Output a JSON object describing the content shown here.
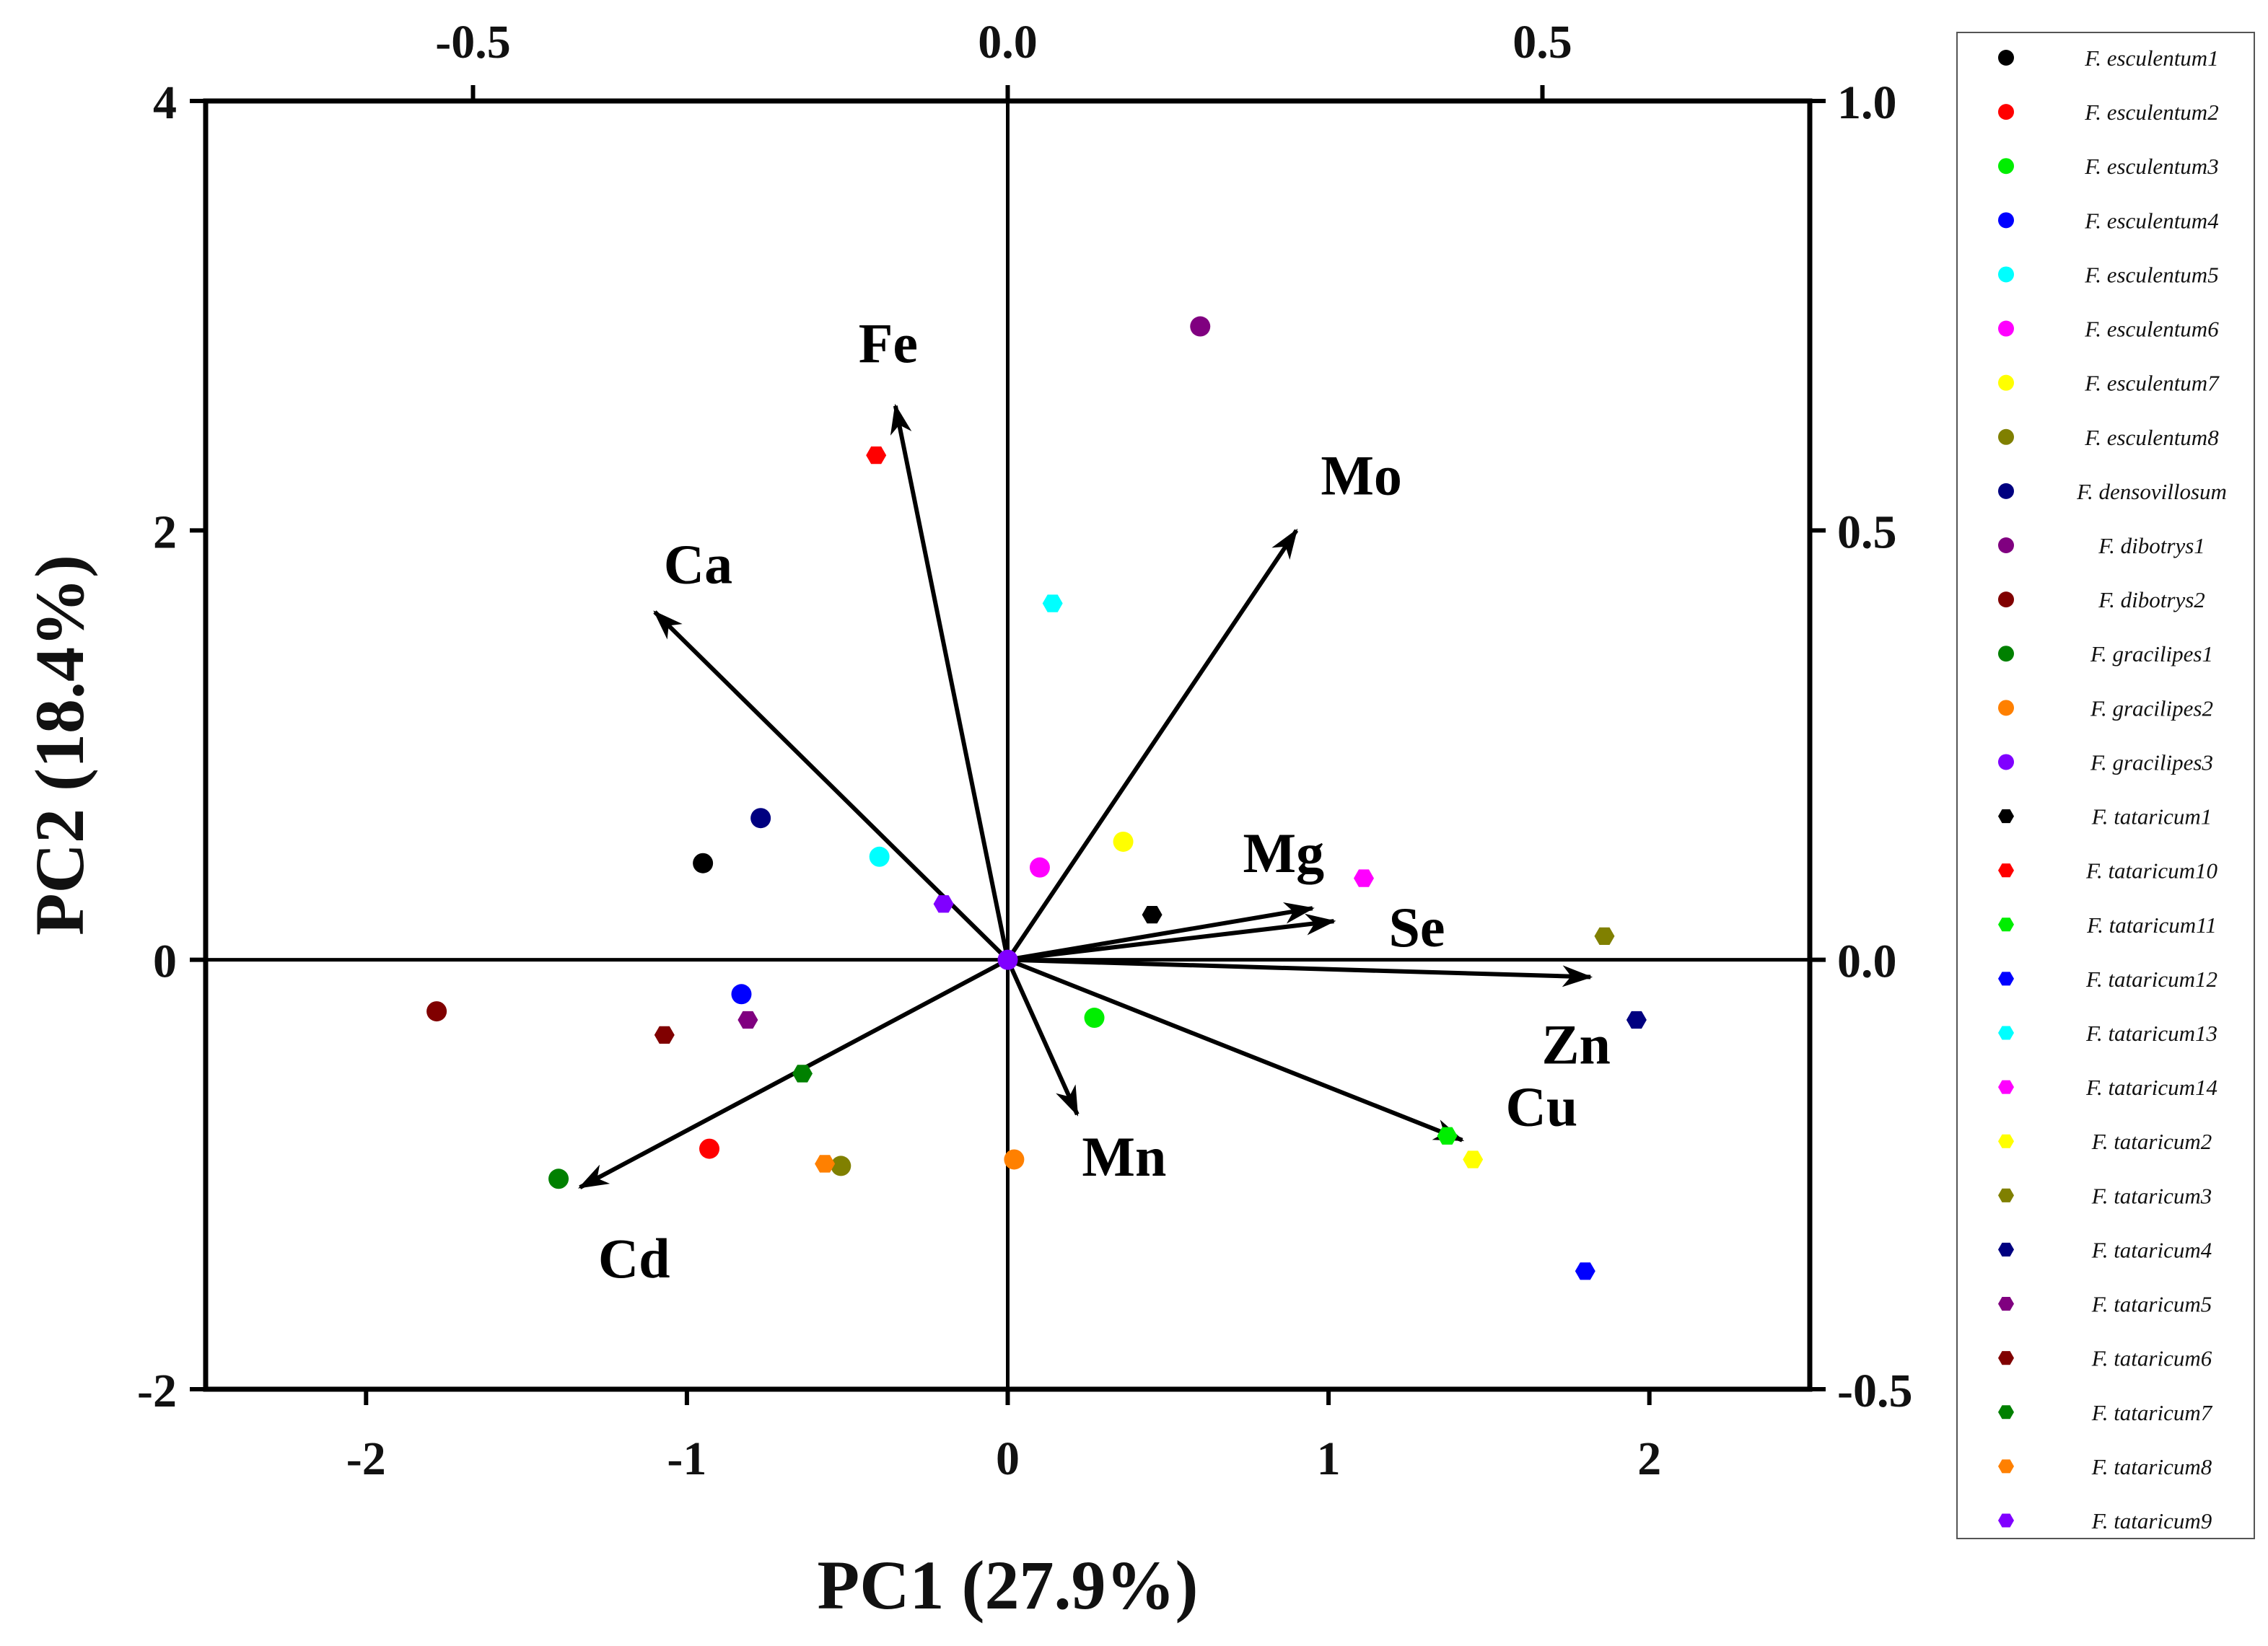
{
  "chart_data": {
    "type": "scatter",
    "title": "",
    "xlabel": "PC1 (27.9%)",
    "ylabel": "PC2 (18.4%)",
    "xlim": [
      -2.5,
      2.5
    ],
    "ylim": [
      -2,
      4
    ],
    "x_ticks": [
      -2,
      -1,
      0,
      1,
      2
    ],
    "y_ticks": [
      -2,
      0,
      2,
      4
    ],
    "top_axis": {
      "lim": [
        -0.75,
        0.75
      ],
      "ticks": [
        -0.5,
        0.0,
        0.5
      ],
      "tick_labels": [
        "-0.5",
        "0.0",
        "0.5"
      ]
    },
    "right_axis": {
      "lim": [
        -0.5,
        1.0
      ],
      "ticks": [
        -0.5,
        0.0,
        0.5,
        1.0
      ],
      "tick_labels": [
        "-0.5",
        "0.0",
        "0.5",
        "1.0"
      ]
    },
    "x_tick_labels": [
      "-2",
      "-1",
      "0",
      "1",
      "2"
    ],
    "y_tick_labels": [
      "-2",
      "0",
      "2",
      "4"
    ],
    "loadings": [
      {
        "name": "Fe",
        "x": -0.105,
        "y": 0.645
      },
      {
        "name": "Mo",
        "x": 0.27,
        "y": 0.5
      },
      {
        "name": "Ca",
        "x": -0.33,
        "y": 0.405
      },
      {
        "name": "Mg",
        "x": 0.285,
        "y": 0.06
      },
      {
        "name": "Se",
        "x": 0.305,
        "y": 0.045
      },
      {
        "name": "Zn",
        "x": 0.545,
        "y": -0.02
      },
      {
        "name": "Cu",
        "x": 0.425,
        "y": -0.21
      },
      {
        "name": "Mn",
        "x": 0.065,
        "y": -0.18
      },
      {
        "name": "Cd",
        "x": -0.4,
        "y": -0.265
      }
    ],
    "legend": {
      "placement": "right"
    },
    "series": [
      {
        "name": "F. esculentum1",
        "color": "#000000",
        "marker": "circle",
        "x": -0.95,
        "y": 0.45
      },
      {
        "name": "F. esculentum2",
        "color": "#ff0000",
        "marker": "circle",
        "x": -0.93,
        "y": -0.88
      },
      {
        "name": "F. esculentum3",
        "color": "#00ee00",
        "marker": "circle",
        "x": 0.27,
        "y": -0.27
      },
      {
        "name": "F. esculentum4",
        "color": "#0000ff",
        "marker": "circle",
        "x": -0.83,
        "y": -0.16
      },
      {
        "name": "F. esculentum5",
        "color": "#00ffff",
        "marker": "circle",
        "x": -0.4,
        "y": 0.48
      },
      {
        "name": "F. esculentum6",
        "color": "#ff00ff",
        "marker": "circle",
        "x": 0.1,
        "y": 0.43
      },
      {
        "name": "F. esculentum7",
        "color": "#ffff00",
        "marker": "circle",
        "x": 0.36,
        "y": 0.55
      },
      {
        "name": "F. esculentum8",
        "color": "#808000",
        "marker": "circle",
        "x": -0.52,
        "y": -0.96
      },
      {
        "name": "F. densovillosum",
        "color": "#000080",
        "marker": "circle",
        "x": -0.77,
        "y": 0.66
      },
      {
        "name": "F. dibotrys1",
        "color": "#800080",
        "marker": "circle",
        "x": 0.6,
        "y": 2.95
      },
      {
        "name": "F. dibotrys2",
        "color": "#800000",
        "marker": "circle",
        "x": -1.78,
        "y": -0.24
      },
      {
        "name": "F. gracilipes1",
        "color": "#008000",
        "marker": "circle",
        "x": -1.4,
        "y": -1.02
      },
      {
        "name": "F. gracilipes2",
        "color": "#ff8000",
        "marker": "circle",
        "x": 0.02,
        "y": -0.93
      },
      {
        "name": "F. gracilipes3",
        "color": "#8000ff",
        "marker": "circle",
        "x": 0.0,
        "y": 0.0
      },
      {
        "name": "F. tataricum1",
        "color": "#000000",
        "marker": "hexagon",
        "x": 0.45,
        "y": 0.21
      },
      {
        "name": "F. tataricum10",
        "color": "#ff0000",
        "marker": "hexagon",
        "x": -0.41,
        "y": 2.35
      },
      {
        "name": "F. tataricum11",
        "color": "#00ee00",
        "marker": "hexagon",
        "x": 1.37,
        "y": -0.82
      },
      {
        "name": "F. tataricum12",
        "color": "#0000ff",
        "marker": "hexagon",
        "x": 1.8,
        "y": -1.45
      },
      {
        "name": "F. tataricum13",
        "color": "#00ffff",
        "marker": "hexagon",
        "x": 0.14,
        "y": 1.66
      },
      {
        "name": "F. tataricum14",
        "color": "#ff00ff",
        "marker": "hexagon",
        "x": 1.11,
        "y": 0.38
      },
      {
        "name": "F. tataricum2",
        "color": "#ffff00",
        "marker": "hexagon",
        "x": 1.45,
        "y": -0.93
      },
      {
        "name": "F. tataricum3",
        "color": "#808000",
        "marker": "hexagon",
        "x": 1.86,
        "y": 0.11
      },
      {
        "name": "F. tataricum4",
        "color": "#000080",
        "marker": "hexagon",
        "x": 1.96,
        "y": -0.28
      },
      {
        "name": "F. tataricum5",
        "color": "#800080",
        "marker": "hexagon",
        "x": -0.81,
        "y": -0.28
      },
      {
        "name": "F. tataricum6",
        "color": "#800000",
        "marker": "hexagon",
        "x": -1.07,
        "y": -0.35
      },
      {
        "name": "F. tataricum7",
        "color": "#008000",
        "marker": "hexagon",
        "x": -0.64,
        "y": -0.53
      },
      {
        "name": "F. tataricum8",
        "color": "#ff8000",
        "marker": "hexagon",
        "x": -0.57,
        "y": -0.95
      },
      {
        "name": "F. tataricum9",
        "color": "#8000ff",
        "marker": "hexagon",
        "x": -0.2,
        "y": 0.26
      }
    ]
  }
}
